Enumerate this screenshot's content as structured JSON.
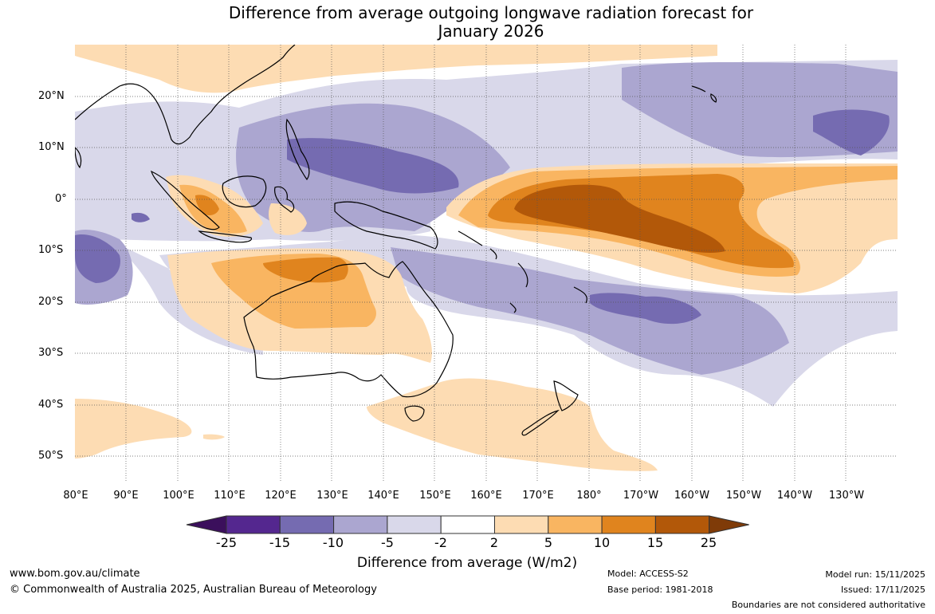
{
  "title": {
    "line1": "Difference from average outgoing longwave radiation forecast for",
    "line2": "January 2026"
  },
  "map": {
    "lat_labels": [
      "20°N",
      "10°N",
      "0°",
      "10°S",
      "20°S",
      "30°S",
      "40°S",
      "50°S"
    ],
    "lon_labels": [
      "80°E",
      "90°E",
      "100°E",
      "110°E",
      "120°E",
      "130°E",
      "140°E",
      "150°E",
      "160°E",
      "170°E",
      "180°",
      "170°W",
      "160°W",
      "150°W",
      "140°W",
      "130°W"
    ]
  },
  "colorbar": {
    "title": "Difference from average (W/m2)",
    "tick_labels": [
      "-25",
      "-15",
      "-10",
      "-5",
      "-2",
      "2",
      "5",
      "10",
      "15",
      "25"
    ],
    "colors": [
      "#3b0f5c",
      "#54278f",
      "#756bb1",
      "#aba6d0",
      "#d9d8ea",
      "#ffffff",
      "#fddcb3",
      "#f9b561",
      "#e0841e",
      "#b25809",
      "#7f3b08"
    ]
  },
  "footer": {
    "website": "www.bom.gov.au/climate",
    "copyright": "© Commonwealth of Australia 2025, Australian Bureau of Meteorology",
    "model": "Model: ACCESS-S2",
    "base_period": "Base period: 1981-2018",
    "model_run": "Model run: 15/11/2025",
    "issued": "Issued: 17/11/2025",
    "disclaimer": "Boundaries are not considered authoritative"
  }
}
